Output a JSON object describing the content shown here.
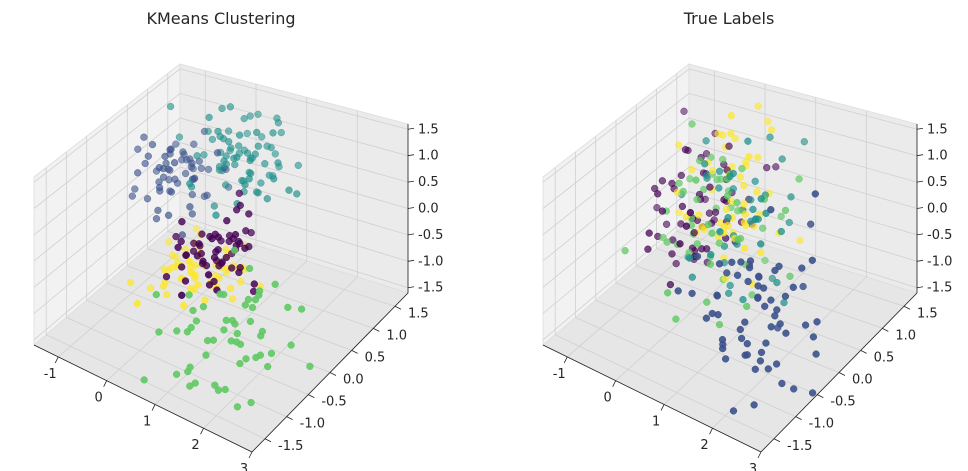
{
  "figure": {
    "panels": [
      {
        "title": "KMeans Clustering"
      },
      {
        "title": "True Labels"
      }
    ]
  },
  "chart_data": [
    {
      "type": "scatter",
      "projection": "3d",
      "title": "KMeans Clustering",
      "xlabel": "",
      "ylabel": "",
      "zlabel": "",
      "xlim": [
        -1.5,
        3.0
      ],
      "ylim": [
        -1.8,
        1.8
      ],
      "zlim": [
        -1.6,
        1.6
      ],
      "xticks": [
        "-1",
        "0",
        "1",
        "2",
        "3"
      ],
      "yticks": [
        "-1.5",
        "-1.0",
        "-0.5",
        "0.0",
        "0.5",
        "1.0",
        "1.5"
      ],
      "zticks": [
        "-1.5",
        "-1.0",
        "-0.5",
        "0.0",
        "0.5",
        "1.0",
        "1.5"
      ],
      "grid": true,
      "colormap": "viridis",
      "series": [
        {
          "color": "#440154",
          "center": [
            0.55,
            0.05,
            -0.35
          ],
          "spread": [
            0.35,
            0.35,
            0.35
          ],
          "count": 60
        },
        {
          "color": "#3b528b",
          "center": [
            -0.75,
            0.85,
            0.2
          ],
          "spread": [
            0.35,
            0.35,
            0.4
          ],
          "count": 60
        },
        {
          "color": "#21918c",
          "center": [
            0.15,
            1.2,
            0.65
          ],
          "spread": [
            0.4,
            0.35,
            0.45
          ],
          "count": 75
        },
        {
          "color": "#5ec962",
          "center": [
            1.9,
            -1.0,
            -0.65
          ],
          "spread": [
            0.55,
            0.45,
            0.5
          ],
          "count": 55
        },
        {
          "color": "#fde725",
          "center": [
            -0.2,
            0.6,
            -1.35
          ],
          "spread": [
            0.45,
            0.45,
            0.15
          ],
          "count": 60
        }
      ]
    },
    {
      "type": "scatter",
      "projection": "3d",
      "title": "True Labels",
      "xlabel": "",
      "ylabel": "",
      "zlabel": "",
      "xlim": [
        -1.5,
        3.0
      ],
      "ylim": [
        -1.8,
        1.8
      ],
      "zlim": [
        -1.6,
        1.6
      ],
      "xticks": [
        "-1",
        "0",
        "1",
        "2",
        "3"
      ],
      "yticks": [
        "-1.5",
        "-1.0",
        "-0.5",
        "0.0",
        "0.5",
        "1.0",
        "1.5"
      ],
      "zticks": [
        "-1.5",
        "-1.0",
        "-0.5",
        "0.0",
        "0.5",
        "1.0",
        "1.5"
      ],
      "grid": true,
      "colormap": "viridis",
      "series": [
        {
          "color": "#440154",
          "center": [
            -0.5,
            0.75,
            -0.2
          ],
          "spread": [
            0.45,
            0.45,
            0.75
          ],
          "count": 65
        },
        {
          "color": "#3b528b",
          "center": [
            2.0,
            -0.7,
            -0.3
          ],
          "spread": [
            0.6,
            0.55,
            0.75
          ],
          "count": 65
        },
        {
          "color": "#21918c",
          "center": [
            0.5,
            0.5,
            -0.15
          ],
          "spread": [
            0.55,
            0.45,
            0.75
          ],
          "count": 45
        },
        {
          "color": "#5ec962",
          "center": [
            0.25,
            0.4,
            0.05
          ],
          "spread": [
            0.55,
            0.5,
            0.8
          ],
          "count": 55
        },
        {
          "color": "#fde725",
          "center": [
            0.1,
            0.8,
            0.05
          ],
          "spread": [
            0.4,
            0.35,
            0.75
          ],
          "count": 55
        }
      ]
    }
  ]
}
